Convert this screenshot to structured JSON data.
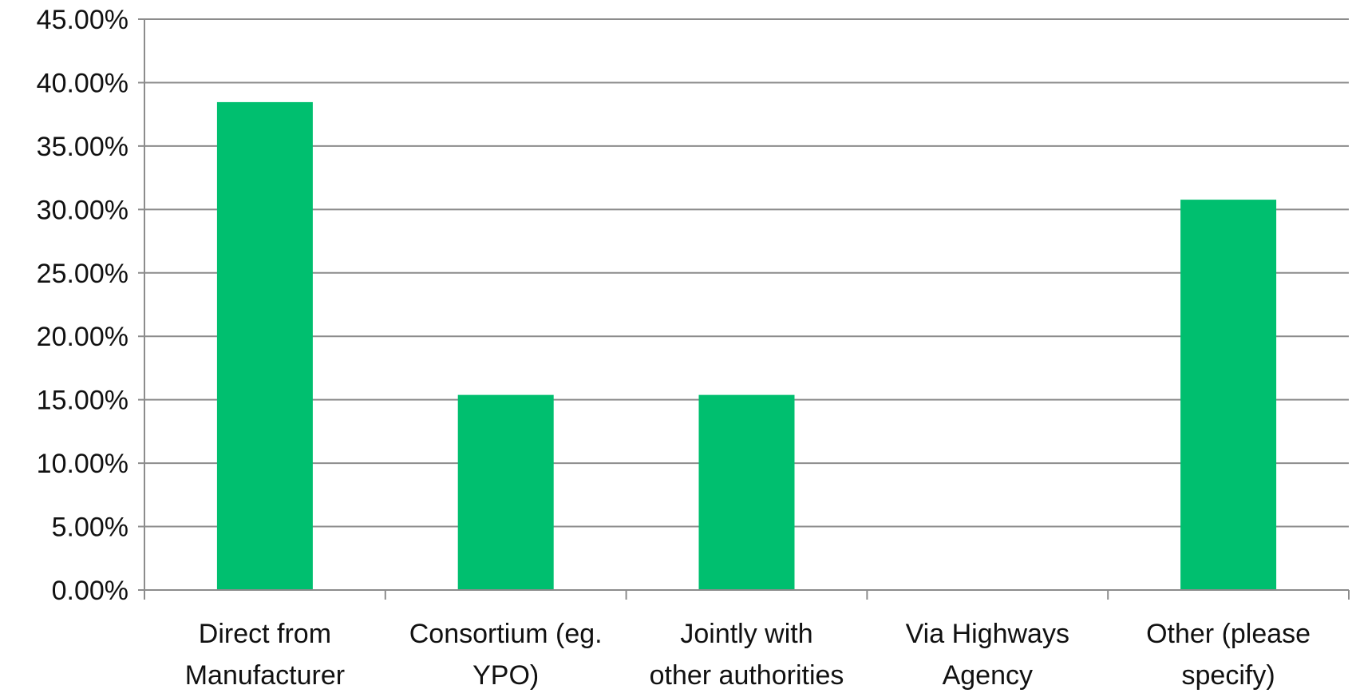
{
  "chart_data": {
    "type": "bar",
    "categories": [
      [
        "Direct from",
        "Manufacturer"
      ],
      [
        "Consortium (eg.",
        "YPO)"
      ],
      [
        "Jointly with",
        "other authorities"
      ],
      [
        "Via Highways",
        "Agency"
      ],
      [
        "Other (please",
        "specify)"
      ]
    ],
    "values": [
      38.46,
      15.38,
      15.38,
      0,
      30.77
    ],
    "ylim": [
      0,
      45
    ],
    "y_ticks": [
      0,
      5,
      10,
      15,
      20,
      25,
      30,
      35,
      40,
      45
    ],
    "y_tick_labels": [
      "0.00%",
      "5.00%",
      "10.00%",
      "15.00%",
      "20.00%",
      "25.00%",
      "30.00%",
      "35.00%",
      "40.00%",
      "45.00%"
    ],
    "title": "",
    "xlabel": "",
    "ylabel": "",
    "grid": true,
    "legend": "none",
    "bar_color": "#00BF6F",
    "grid_color": "#8C8C8C",
    "axis_color": "#8C8C8C"
  }
}
